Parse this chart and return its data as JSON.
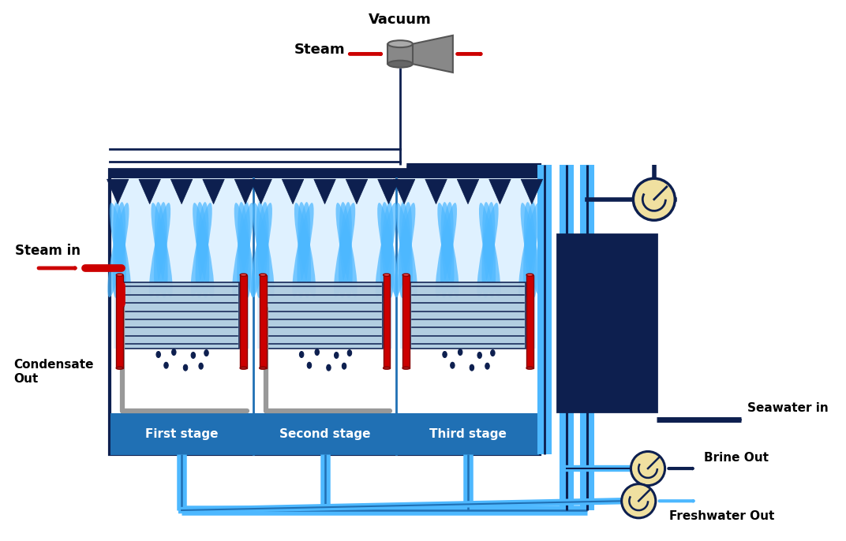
{
  "bg_color": "#ffffff",
  "dark_blue": "#0d1f4f",
  "mid_blue": "#2070b4",
  "light_blue": "#4db8ff",
  "very_light_blue": "#b8e0ff",
  "sky_blue": "#87ceeb",
  "red": "#cc0000",
  "gray": "#aaaaaa",
  "cream": "#f0e0a0",
  "dark_gray": "#555555",
  "stage_labels": [
    "First stage",
    "Second stage",
    "Third stage"
  ],
  "labels": {
    "vacuum": "Vacuum",
    "steam_top": "Steam",
    "steam_in": "Steam in",
    "condensate_out": "Condensate\nOut",
    "seawater_in": "Seawater in",
    "brine_out": "Brine Out",
    "freshwater_out": "Freshwater Out"
  }
}
